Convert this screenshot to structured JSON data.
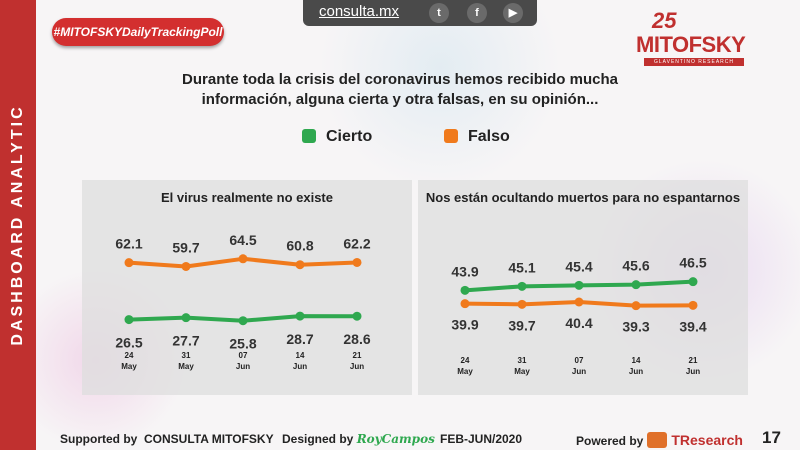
{
  "sidebar": {
    "label": "DASHBOARD ANALYTIC"
  },
  "hashtag": "#MITOFSKYDailyTrackingPoll",
  "topbar": {
    "site": "consulta.mx",
    "icons": [
      "twitter-icon",
      "facebook-icon",
      "youtube-icon"
    ]
  },
  "logo": {
    "number": "25",
    "name": "MITOFSKY",
    "tagline": "GLAVENTINO RESEARCH"
  },
  "question": "Durante toda la crisis del coronavirus hemos recibido mucha información, alguna cierta y otra falsas, en su opinión...",
  "legend": [
    {
      "label": "Cierto",
      "color": "#2fa84f"
    },
    {
      "label": "Falso",
      "color": "#f07a1c"
    }
  ],
  "chart_data": [
    {
      "type": "line",
      "title": "El virus realmente no existe",
      "categories": [
        [
          "24",
          "May"
        ],
        [
          "31",
          "May"
        ],
        [
          "07",
          "Jun"
        ],
        [
          "14",
          "Jun"
        ],
        [
          "21",
          "Jun"
        ]
      ],
      "series": [
        {
          "name": "Falso",
          "color": "#f07a1c",
          "values": [
            62.1,
            59.7,
            64.5,
            60.8,
            62.2
          ],
          "labels": [
            "62.1",
            "59.7",
            "64.5",
            "60.8",
            "62.2"
          ]
        },
        {
          "name": "Cierto",
          "color": "#2fa84f",
          "values": [
            26.5,
            27.7,
            25.8,
            28.7,
            28.6
          ],
          "labels": [
            "26.5",
            "27.7",
            "25.8",
            "28.7",
            "28.6"
          ]
        }
      ]
    },
    {
      "type": "line",
      "title": "Nos están ocultando muertos para no espantarnos",
      "categories": [
        [
          "24",
          "May"
        ],
        [
          "31",
          "May"
        ],
        [
          "07",
          "Jun"
        ],
        [
          "14",
          "Jun"
        ],
        [
          "21",
          "Jun"
        ]
      ],
      "series": [
        {
          "name": "Cierto",
          "color": "#2fa84f",
          "values": [
            43.9,
            45.1,
            45.4,
            45.6,
            46.5
          ],
          "labels": [
            "43.9",
            "45.1",
            "45.4",
            "45.6",
            "46.5"
          ]
        },
        {
          "name": "Falso",
          "color": "#f07a1c",
          "values": [
            39.9,
            39.7,
            40.4,
            39.3,
            39.4
          ],
          "labels": [
            "39.9",
            "39.7",
            "40.4",
            "39.3",
            "39.4"
          ]
        }
      ]
    }
  ],
  "footer": {
    "supported_label": "Supported by",
    "supported_name": "CONSULTA MITOFSKY",
    "designed_label": "Designed by",
    "designed_name": "RoyCampos",
    "period": "FEB-JUN/2020",
    "powered_label": "Powered by",
    "powered_name": "TResearch",
    "page": "17"
  }
}
